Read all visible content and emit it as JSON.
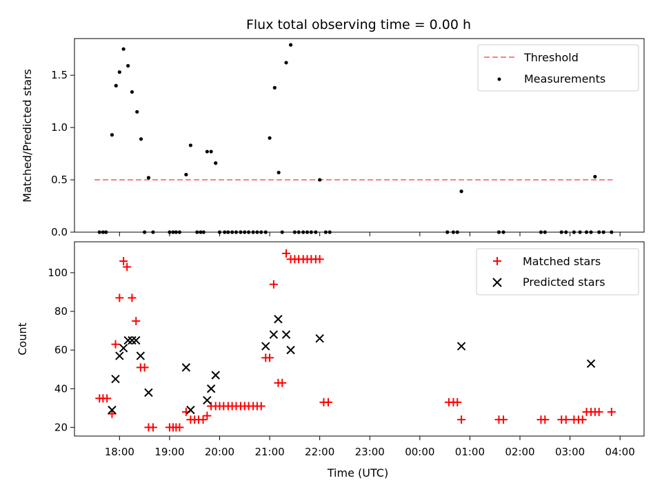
{
  "chart_data": [
    {
      "id": "ratio",
      "type": "scatter",
      "title": "Flux total observing time = 0.00 h",
      "xlabel": "",
      "ylabel": "Matched/Predicted stars",
      "ylim": [
        0,
        1.85
      ],
      "yticks": [
        0.0,
        0.5,
        1.0,
        1.5
      ],
      "ytick_labels": [
        "0.0",
        "0.5",
        "1.0",
        "1.5"
      ],
      "legend_position": "top-right",
      "threshold": {
        "name": "Threshold",
        "value": 0.5,
        "x_range": [
          17.5,
          27.85
        ],
        "color": "#ff7f7f"
      },
      "series": [
        {
          "name": "Measurements",
          "marker": "dot",
          "color": "#000000",
          "x": [
            17.6,
            17.67,
            17.73,
            17.85,
            17.93,
            18.0,
            18.08,
            18.17,
            18.25,
            18.35,
            18.43,
            18.5,
            18.58,
            18.67,
            19.0,
            19.07,
            19.13,
            19.2,
            19.33,
            19.42,
            19.55,
            19.62,
            19.68,
            19.75,
            19.83,
            19.92,
            20.0,
            20.1,
            20.17,
            20.25,
            20.33,
            20.42,
            20.5,
            20.58,
            20.67,
            20.75,
            20.83,
            20.92,
            21.0,
            21.1,
            21.18,
            21.25,
            21.33,
            21.42,
            21.5,
            21.58,
            21.67,
            21.75,
            21.83,
            21.92,
            22.0,
            22.12,
            22.2,
            24.55,
            24.67,
            24.75,
            24.83,
            25.58,
            25.67,
            26.42,
            26.5,
            26.83,
            26.92,
            27.08,
            27.2,
            27.33,
            27.42,
            27.5,
            27.58,
            27.67,
            27.83
          ],
          "y": [
            0,
            0,
            0,
            0.93,
            1.4,
            1.53,
            1.75,
            1.59,
            1.34,
            1.15,
            0.89,
            0,
            0.52,
            0,
            0,
            0,
            0,
            0,
            0.55,
            0.83,
            0,
            0,
            0,
            0.77,
            0.77,
            0.66,
            0,
            0,
            0,
            0,
            0,
            0,
            0,
            0,
            0,
            0,
            0,
            0,
            0.9,
            1.38,
            0.57,
            0,
            1.62,
            1.79,
            0,
            0,
            0,
            0,
            0,
            0,
            0.5,
            0,
            0,
            0,
            0,
            0,
            0.39,
            0,
            0,
            0,
            0,
            0,
            0,
            0,
            0,
            0,
            0,
            0.53,
            0,
            0,
            0
          ]
        }
      ]
    },
    {
      "id": "counts",
      "type": "scatter",
      "title": "",
      "xlabel": "Time (UTC)",
      "ylabel": "Count",
      "ylim": [
        15.5,
        116
      ],
      "yticks": [
        20,
        40,
        60,
        80,
        100
      ],
      "ytick_labels": [
        "20",
        "40",
        "60",
        "80",
        "100"
      ],
      "xlim": [
        17.1,
        28.48
      ],
      "xticks": [
        18,
        19,
        20,
        21,
        22,
        23,
        24,
        25,
        26,
        27,
        28
      ],
      "xtick_labels": [
        "18:00",
        "19:00",
        "20:00",
        "21:00",
        "22:00",
        "23:00",
        "00:00",
        "01:00",
        "02:00",
        "03:00",
        "04:00"
      ],
      "legend_position": "top-right",
      "series": [
        {
          "name": "Matched stars",
          "marker": "plus",
          "color": "#ff0000",
          "x": [
            17.6,
            17.67,
            17.75,
            17.85,
            17.92,
            18.0,
            18.08,
            18.15,
            18.25,
            18.33,
            18.42,
            18.5,
            18.58,
            18.67,
            19.0,
            19.07,
            19.13,
            19.2,
            19.33,
            19.42,
            19.5,
            19.58,
            19.67,
            19.75,
            19.83,
            19.92,
            20.0,
            20.08,
            20.17,
            20.25,
            20.33,
            20.42,
            20.5,
            20.58,
            20.67,
            20.75,
            20.83,
            20.92,
            21.0,
            21.08,
            21.17,
            21.25,
            21.33,
            21.42,
            21.5,
            21.58,
            21.67,
            21.75,
            21.83,
            21.92,
            22.0,
            22.08,
            22.17,
            24.58,
            24.67,
            24.75,
            24.83,
            25.58,
            25.67,
            26.42,
            26.5,
            26.83,
            26.92,
            27.08,
            27.17,
            27.25,
            27.33,
            27.42,
            27.5,
            27.58,
            27.83
          ],
          "y": [
            35,
            35,
            35,
            27,
            63,
            87,
            106,
            103,
            87,
            75,
            51,
            51,
            20,
            20,
            20,
            20,
            20,
            20,
            28,
            24,
            24,
            24,
            24,
            26,
            31,
            31,
            31,
            31,
            31,
            31,
            31,
            31,
            31,
            31,
            31,
            31,
            31,
            56,
            56,
            94,
            43,
            43,
            110,
            107,
            107,
            107,
            107,
            107,
            107,
            107,
            107,
            33,
            33,
            33,
            33,
            33,
            24,
            24,
            24,
            24,
            24,
            24,
            24,
            24,
            24,
            24,
            28,
            28,
            28,
            28,
            28
          ]
        },
        {
          "name": "Predicted stars",
          "marker": "cross",
          "color": "#000000",
          "x": [
            17.85,
            17.92,
            18.0,
            18.08,
            18.17,
            18.25,
            18.33,
            18.42,
            18.58,
            19.33,
            19.42,
            19.75,
            19.83,
            19.92,
            20.92,
            21.08,
            21.17,
            21.33,
            21.42,
            22.0,
            24.83,
            27.42
          ],
          "y": [
            29,
            45,
            57,
            61,
            65,
            65,
            65,
            57,
            38,
            51,
            29,
            34,
            40,
            47,
            62,
            68,
            76,
            68,
            60,
            66,
            62,
            53
          ]
        }
      ]
    }
  ],
  "legend": {
    "threshold_label": "Threshold",
    "measurements_label": "Measurements",
    "matched_label": "Matched stars",
    "predicted_label": "Predicted stars"
  }
}
